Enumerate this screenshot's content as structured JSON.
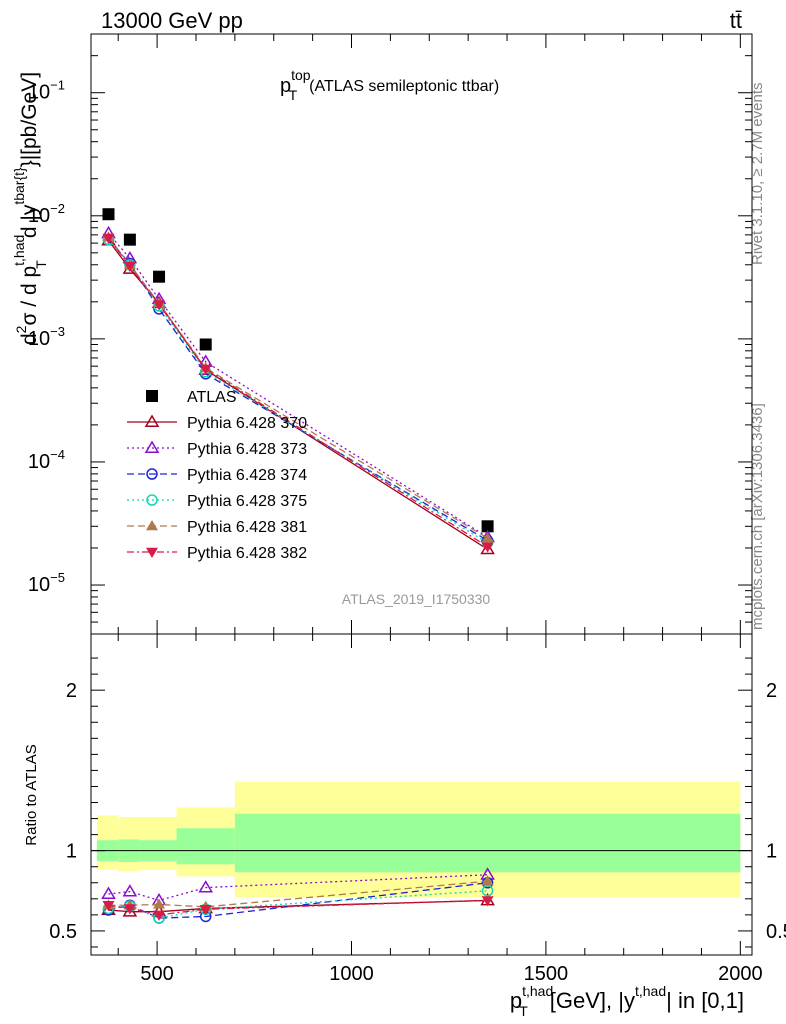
{
  "header": {
    "energy_label": "13000 GeV pp",
    "process_label": "tt̄"
  },
  "side_labels": {
    "rivet": "Rivet 3.1.10, ≥ 2.7M events",
    "mcplots": "mcplots.cern.ch [arXiv:1306.3436]"
  },
  "chart_data": [
    {
      "type": "scatter",
      "panel": "main",
      "title_main": "p",
      "title_sup": "top",
      "title_sub": "T",
      "title_rest": "(ATLAS semileptonic ttbar)",
      "analysis_id": "ATLAS_2019_I1750330",
      "ylabel": "d²σ / d p_T^{t,had} d |y^{tbar{t}}|[pb/GeV]",
      "yscale": "log",
      "ylim": [
        4e-06,
        0.3
      ],
      "xlim": [
        330,
        2030
      ],
      "y_ticks": [
        {
          "value": 0.1,
          "base": "10",
          "exp": "−1"
        },
        {
          "value": 0.01,
          "base": "10",
          "exp": "−2"
        },
        {
          "value": 0.001,
          "base": "10",
          "exp": "−3"
        },
        {
          "value": 0.0001,
          "base": "10",
          "exp": "−4"
        },
        {
          "value": 1e-05,
          "base": "10",
          "exp": "−5"
        }
      ],
      "legend_position": "center-left",
      "x": [
        375,
        430,
        505,
        625,
        1350
      ],
      "series": [
        {
          "name": "ATLAS",
          "style": "data",
          "color": "#000000",
          "marker": "square-filled",
          "values": [
            0.0103,
            0.0064,
            0.0032,
            0.0009,
            3e-05
          ]
        },
        {
          "name": "Pythia 6.428 370",
          "color": "#a3001b",
          "dash": "",
          "marker": "triangle-up-open",
          "values": [
            0.0063,
            0.0037,
            0.00195,
            0.00056,
            1.95e-05
          ]
        },
        {
          "name": "Pythia 6.428 373",
          "color": "#8b0ccc",
          "dash": "2,3",
          "marker": "triangle-up-open",
          "values": [
            0.0072,
            0.0045,
            0.0021,
            0.00065,
            2.45e-05
          ]
        },
        {
          "name": "Pythia 6.428 374",
          "color": "#1c24d8",
          "dash": "7,4",
          "marker": "circle-open",
          "values": [
            0.0064,
            0.0041,
            0.00175,
            0.00052,
            2.3e-05
          ]
        },
        {
          "name": "Pythia 6.428 375",
          "color": "#12d6b4",
          "dash": "2,3",
          "marker": "circle-open",
          "values": [
            0.0064,
            0.004,
            0.00185,
            0.00054,
            2.2e-05
          ]
        },
        {
          "name": "Pythia 6.428 381",
          "color": "#b07a4a",
          "dash": "7,4",
          "marker": "triangle-up-filled",
          "values": [
            0.0067,
            0.004,
            0.00195,
            0.00058,
            2.4e-05
          ]
        },
        {
          "name": "Pythia 6.428 382",
          "color": "#d81c48",
          "dash": "7,3,2,3",
          "marker": "triangle-down-filled",
          "values": [
            0.0066,
            0.0039,
            0.0019,
            0.00057,
            2.05e-05
          ]
        }
      ]
    },
    {
      "type": "scatter",
      "panel": "ratio",
      "ylabel": "Ratio to ATLAS",
      "xlabel_main": "p",
      "xlabel_sup": "t,had",
      "xlabel_sub": "T",
      "xlabel_rest": "[GeV], |y",
      "xlabel_sup2": "t,had",
      "xlabel_tail": "| in [0,1]",
      "ylim": [
        0.35,
        2.35
      ],
      "xlim": [
        330,
        2030
      ],
      "y_ticks": [
        0.5,
        1,
        2
      ],
      "x_ticks": [
        500,
        1000,
        1500,
        2000
      ],
      "bands": [
        {
          "x_range": [
            345,
            400
          ],
          "yellow": [
            0.88,
            1.22
          ],
          "green": [
            0.935,
            1.065
          ]
        },
        {
          "x_range": [
            400,
            455
          ],
          "yellow": [
            0.87,
            1.21
          ],
          "green": [
            0.93,
            1.07
          ]
        },
        {
          "x_range": [
            455,
            550
          ],
          "yellow": [
            0.88,
            1.21
          ],
          "green": [
            0.935,
            1.065
          ]
        },
        {
          "x_range": [
            550,
            700
          ],
          "yellow": [
            0.84,
            1.27
          ],
          "green": [
            0.915,
            1.14
          ]
        },
        {
          "x_range": [
            700,
            2000
          ],
          "yellow": [
            0.71,
            1.43
          ],
          "green": [
            0.865,
            1.23
          ]
        }
      ],
      "x": [
        375,
        430,
        505,
        625,
        1350
      ],
      "series": [
        {
          "name": "Pythia 6.428 370",
          "color": "#a3001b",
          "dash": "",
          "marker": "triangle-up-open",
          "values": [
            0.63,
            0.62,
            0.62,
            0.64,
            0.69
          ]
        },
        {
          "name": "Pythia 6.428 373",
          "color": "#8b0ccc",
          "dash": "2,3",
          "marker": "triangle-up-open",
          "values": [
            0.73,
            0.745,
            0.69,
            0.77,
            0.85
          ]
        },
        {
          "name": "Pythia 6.428 374",
          "color": "#1c24d8",
          "dash": "7,4",
          "marker": "circle-open",
          "values": [
            0.63,
            0.66,
            0.58,
            0.59,
            0.8
          ]
        },
        {
          "name": "Pythia 6.428 375",
          "color": "#12d6b4",
          "dash": "2,3",
          "marker": "circle-open",
          "values": [
            0.64,
            0.655,
            0.58,
            0.635,
            0.75
          ]
        },
        {
          "name": "Pythia 6.428 381",
          "color": "#b07a4a",
          "dash": "7,4",
          "marker": "triangle-up-filled",
          "values": [
            0.66,
            0.66,
            0.665,
            0.65,
            0.81
          ]
        },
        {
          "name": "Pythia 6.428 382",
          "color": "#d81c48",
          "dash": "7,3,2,3",
          "marker": "triangle-down-filled",
          "values": [
            0.66,
            0.64,
            0.6,
            0.635,
            0.69
          ]
        }
      ]
    }
  ]
}
